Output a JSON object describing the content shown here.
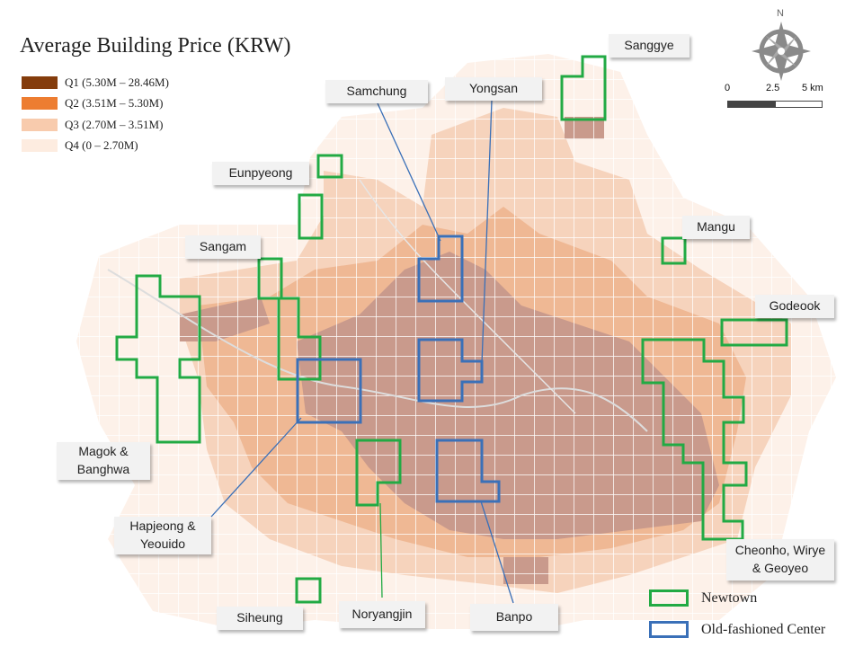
{
  "title": "Average Building Price (KRW)",
  "legend": [
    {
      "label": "Q1 (5.30M – 28.46M)",
      "color": "#843c0c"
    },
    {
      "label": "Q2 (3.51M – 5.30M)",
      "color": "#ed7d31"
    },
    {
      "label": "Q3 (2.70M – 3.51M)",
      "color": "#f8cbad"
    },
    {
      "label": "Q4 (0 – 2.70M)",
      "color": "#fdece0"
    }
  ],
  "compass": {
    "north_label": "N",
    "icon": "compass-rose-icon"
  },
  "scalebar": {
    "labels": [
      "0",
      "2.5",
      "5 km"
    ]
  },
  "area_labels": {
    "sanggye": "Sanggye",
    "samchung": "Samchung",
    "yongsan": "Yongsan",
    "eunpyeong": "Eunpyeong",
    "mangu": "Mangu",
    "sangam": "Sangam",
    "godeook": "Godeook",
    "magok": "Magok  &\nBanghwa",
    "hapjeong": "Hapjeong  &\nYeouido",
    "cheonho": "Cheonho,  Wirye\n& Geoyeo",
    "siheung": "Siheung",
    "noryangjin": "Noryangjin",
    "banpo": "Banpo"
  },
  "map_key": {
    "newtown": {
      "label": "Newtown",
      "color": "#22aa44"
    },
    "old_center": {
      "label": "Old-fashioned Center",
      "color": "#3a70b8"
    }
  },
  "map_colors": {
    "core": "#c99a8c",
    "mid": "#f0c4a8",
    "light": "#fbe2d2",
    "pale": "#fdf1e9",
    "road": "#dcdcdc"
  }
}
